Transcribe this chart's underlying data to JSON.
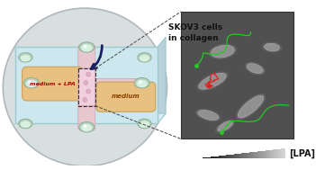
{
  "title_text": "SKOV3 cells\nin collagen",
  "lpa_label": "[LPA]",
  "medium_lpa_label": "medium + LPA",
  "medium_label": "medium",
  "bg_color": "#ffffff",
  "circle_facecolor": "#d8dfe0",
  "circle_edgecolor": "#b0b8bc",
  "chip_top_color": "#cce8ee",
  "chip_top_edge": "#a0c8d0",
  "chip_side_color": "#e8f0f2",
  "chip_bottom_color": "#b8d0d8",
  "channel_color": "#e8c8d0",
  "channel_edge": "#d0a8b8",
  "res_lpa_color": "#e8c080",
  "res_lpa_edge": "#c8a060",
  "res_med_color": "#e8c080",
  "res_med_edge": "#c8a060",
  "cell_zone_color": "#f0d0dc",
  "cell_zone_edge": "#d0a0b0",
  "well_outer_color": "#a0c8b0",
  "well_inner_color": "#c8e8d0",
  "well_edge": "#80a890",
  "lpa_text_color": "#aa0000",
  "med_text_color": "#884400",
  "arrow_color": "#1a2060",
  "dashed_color": "#444444",
  "micro_bg": "#505050",
  "micro_edge": "#303030",
  "green_color": "#22cc22",
  "red_color": "#dd2222",
  "cell_face": "#888888",
  "cell_edge": "#aaaaaa",
  "gradient_left": "#c0c0c0",
  "gradient_right": "#111111",
  "figsize": [
    3.51,
    1.89
  ],
  "dpi": 100
}
